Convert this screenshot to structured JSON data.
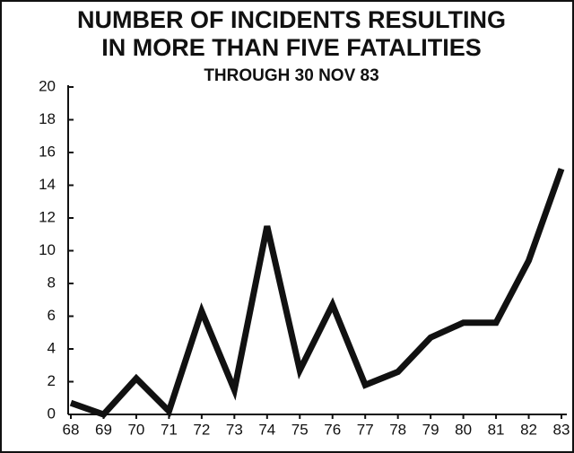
{
  "chart_data": {
    "type": "line",
    "title": [
      "NUMBER OF INCIDENTS RESULTING",
      "IN MORE THAN FIVE FATALITIES"
    ],
    "subtitle": "THROUGH 30 NOV 83",
    "categories": [
      "68",
      "69",
      "70",
      "71",
      "72",
      "73",
      "74",
      "75",
      "76",
      "77",
      "78",
      "79",
      "80",
      "81",
      "82",
      "83"
    ],
    "series": [
      {
        "name": "Incidents",
        "color": "#111111",
        "values": [
          0.7,
          0,
          2.2,
          0.2,
          6.3,
          1.5,
          11.5,
          2.7,
          6.7,
          1.8,
          2.6,
          4.7,
          5.6,
          5.6,
          9.4,
          15
        ]
      }
    ],
    "ylim": [
      0,
      20
    ],
    "yticks": [
      0,
      2,
      4,
      6,
      8,
      10,
      12,
      14,
      16,
      18,
      20
    ],
    "grid": false
  }
}
